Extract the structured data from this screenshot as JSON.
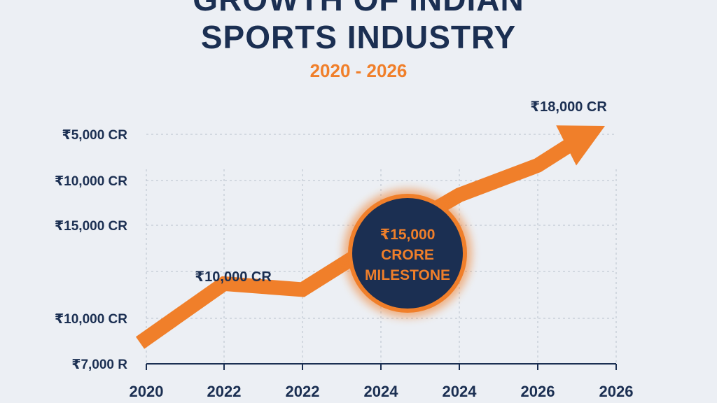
{
  "header": {
    "title_line1": "GROWTH OF INDIAN",
    "title_line2": "SPORTS INDUSTRY",
    "subtitle": "2020 - 2026"
  },
  "colors": {
    "navy": "#1b2f52",
    "orange": "#f07f2a",
    "background": "#eceff4",
    "grid": "#b9c0cc"
  },
  "chart_data": {
    "type": "line",
    "title": "GROWTH OF INDIAN SPORTS INDUSTRY",
    "subtitle": "2020 - 2026",
    "y_tick_labels": [
      "₹5,000 CR",
      "₹10,000 CR",
      "₹15,000 CR",
      "",
      "₹10,000 CR",
      "₹7,000 R"
    ],
    "x_tick_labels": [
      "2020",
      "2022",
      "2022",
      "2024",
      "2024",
      "2026",
      "2026"
    ],
    "series": [
      {
        "values": [
          7000,
          10000,
          9700,
          12200,
          14500,
          16000,
          18000
        ]
      }
    ],
    "annotations": {
      "point_label": "₹10,000 CR",
      "end_label": "₹18,000 CR",
      "milestone": [
        "₹15,000",
        "CRORE",
        "MILESTONE"
      ]
    },
    "grid": true,
    "arrow_head": true
  }
}
